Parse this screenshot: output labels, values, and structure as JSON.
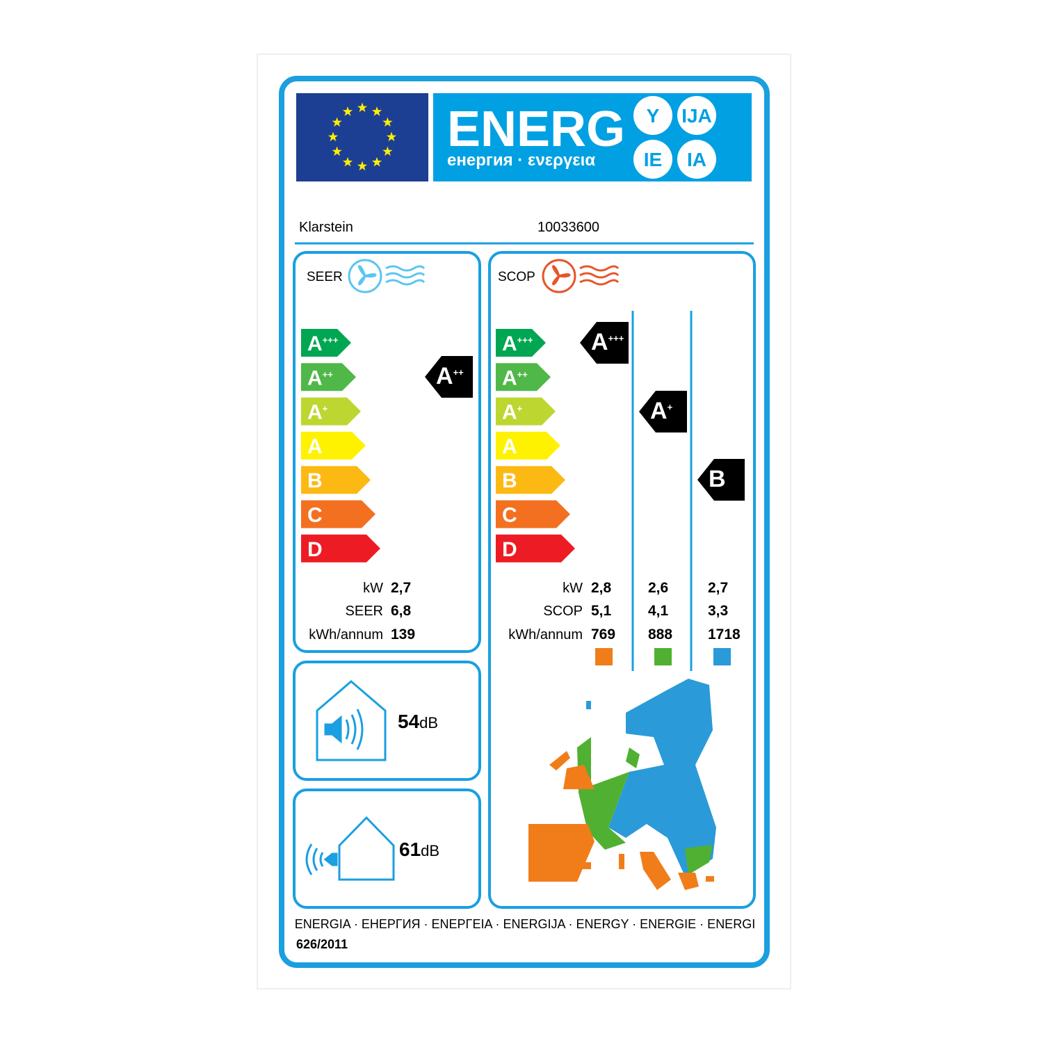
{
  "header": {
    "title": "ENERG",
    "subtitle": "енергия · ενεργεια",
    "suffixes": [
      "Y",
      "IJA",
      "IE",
      "IA"
    ]
  },
  "supplier": "Klarstein",
  "model": "10033600",
  "cooling": {
    "label": "SEER",
    "classes": [
      {
        "letter": "A",
        "sup": "+++"
      },
      {
        "letter": "A",
        "sup": "++"
      },
      {
        "letter": "A",
        "sup": "+"
      },
      {
        "letter": "A"
      },
      {
        "letter": "B"
      },
      {
        "letter": "C"
      },
      {
        "letter": "D"
      }
    ],
    "rating": {
      "letter": "A",
      "sup": "++"
    },
    "rows": [
      {
        "label": "kW",
        "value": "2,7"
      },
      {
        "label": "SEER",
        "value": "6,8"
      },
      {
        "label": "kWh/annum",
        "value": "139"
      }
    ]
  },
  "heating": {
    "label": "SCOP",
    "classes": [
      {
        "letter": "A",
        "sup": "+++"
      },
      {
        "letter": "A",
        "sup": "++"
      },
      {
        "letter": "A",
        "sup": "+"
      },
      {
        "letter": "A"
      },
      {
        "letter": "B"
      },
      {
        "letter": "C"
      },
      {
        "letter": "D"
      }
    ],
    "ratings": [
      {
        "letter": "A",
        "sup": "+++"
      },
      {
        "letter": "A",
        "sup": "+"
      },
      {
        "letter": "B"
      }
    ],
    "rows": [
      {
        "label": "kW",
        "values": [
          "2,8",
          "2,6",
          "2,7"
        ]
      },
      {
        "label": "SCOP",
        "values": [
          "5,1",
          "4,1",
          "3,3"
        ]
      },
      {
        "label": "kWh/annum",
        "values": [
          "769",
          "888",
          "1718"
        ]
      }
    ]
  },
  "noise_indoor": {
    "value": "54",
    "unit": "dB"
  },
  "noise_outdoor": {
    "value": "61",
    "unit": "dB"
  },
  "footer": {
    "languages": "ENERGIA · ЕНЕРГИЯ · ΕΝΕΡΓΕΙΑ · ENERGIJA · ENERGY · ENERGIE · ENERGI",
    "regulation": "626/2011"
  }
}
